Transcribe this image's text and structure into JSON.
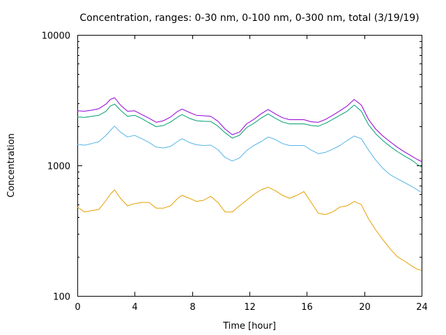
{
  "chart_data": {
    "type": "line",
    "title": "Concentration, ranges: 0-30 nm, 0-100 nm, 0-300 nm, total (3/19/19)",
    "xlabel": "Time [hour]",
    "ylabel": "Concentration",
    "xlim": [
      0,
      24
    ],
    "ylim": [
      100,
      10000
    ],
    "yscale": "log",
    "x_ticks": [
      0,
      4,
      8,
      12,
      16,
      20,
      24
    ],
    "y_ticks": [
      100,
      1000,
      10000
    ],
    "x_tick_labels": [
      "0",
      "4",
      "8",
      "12",
      "16",
      "20",
      "24"
    ],
    "y_tick_labels": [
      "100",
      "1000",
      "10000"
    ],
    "grid": false,
    "legend": "none",
    "series": [
      {
        "color": "#e69f00",
        "points": [
          [
            0,
            480
          ],
          [
            0.5,
            440
          ],
          [
            1,
            450
          ],
          [
            1.5,
            460
          ],
          [
            2,
            540
          ],
          [
            2.3,
            600
          ],
          [
            2.6,
            650
          ],
          [
            3,
            560
          ],
          [
            3.5,
            490
          ],
          [
            4,
            510
          ],
          [
            4.5,
            520
          ],
          [
            5,
            520
          ],
          [
            5.5,
            470
          ],
          [
            6,
            470
          ],
          [
            6.5,
            490
          ],
          [
            7,
            560
          ],
          [
            7.3,
            590
          ],
          [
            7.8,
            560
          ],
          [
            8.3,
            530
          ],
          [
            8.8,
            540
          ],
          [
            9.3,
            580
          ],
          [
            9.8,
            520
          ],
          [
            10.3,
            440
          ],
          [
            10.8,
            440
          ],
          [
            11.3,
            490
          ],
          [
            11.8,
            540
          ],
          [
            12.3,
            600
          ],
          [
            12.8,
            650
          ],
          [
            13.3,
            680
          ],
          [
            13.8,
            640
          ],
          [
            14.3,
            590
          ],
          [
            14.8,
            560
          ],
          [
            15.3,
            590
          ],
          [
            15.8,
            630
          ],
          [
            16.3,
            520
          ],
          [
            16.8,
            430
          ],
          [
            17.3,
            420
          ],
          [
            17.8,
            440
          ],
          [
            18.3,
            480
          ],
          [
            18.8,
            490
          ],
          [
            19.3,
            530
          ],
          [
            19.8,
            500
          ],
          [
            20.3,
            390
          ],
          [
            20.8,
            320
          ],
          [
            21.3,
            270
          ],
          [
            21.8,
            230
          ],
          [
            22.3,
            200
          ],
          [
            22.8,
            185
          ],
          [
            23.3,
            170
          ],
          [
            23.7,
            160
          ],
          [
            24,
            157
          ]
        ]
      },
      {
        "color": "#56b4e9",
        "points": [
          [
            0,
            1450
          ],
          [
            0.5,
            1430
          ],
          [
            1,
            1470
          ],
          [
            1.5,
            1520
          ],
          [
            2,
            1700
          ],
          [
            2.3,
            1850
          ],
          [
            2.6,
            2000
          ],
          [
            3,
            1800
          ],
          [
            3.5,
            1650
          ],
          [
            4,
            1700
          ],
          [
            4.5,
            1600
          ],
          [
            5,
            1500
          ],
          [
            5.5,
            1380
          ],
          [
            6,
            1360
          ],
          [
            6.5,
            1400
          ],
          [
            7,
            1530
          ],
          [
            7.3,
            1600
          ],
          [
            7.8,
            1500
          ],
          [
            8.3,
            1440
          ],
          [
            8.8,
            1420
          ],
          [
            9.3,
            1430
          ],
          [
            9.8,
            1320
          ],
          [
            10.3,
            1150
          ],
          [
            10.8,
            1080
          ],
          [
            11.3,
            1140
          ],
          [
            11.8,
            1300
          ],
          [
            12.3,
            1420
          ],
          [
            12.8,
            1520
          ],
          [
            13.3,
            1650
          ],
          [
            13.8,
            1580
          ],
          [
            14.3,
            1470
          ],
          [
            14.8,
            1420
          ],
          [
            15.3,
            1420
          ],
          [
            15.8,
            1420
          ],
          [
            16.3,
            1310
          ],
          [
            16.8,
            1230
          ],
          [
            17.3,
            1260
          ],
          [
            17.8,
            1330
          ],
          [
            18.3,
            1420
          ],
          [
            18.8,
            1550
          ],
          [
            19.3,
            1680
          ],
          [
            19.8,
            1600
          ],
          [
            20.3,
            1310
          ],
          [
            20.8,
            1100
          ],
          [
            21.3,
            950
          ],
          [
            21.8,
            850
          ],
          [
            22.3,
            790
          ],
          [
            22.8,
            740
          ],
          [
            23.3,
            690
          ],
          [
            23.7,
            650
          ],
          [
            24,
            620
          ]
        ]
      },
      {
        "color": "#009e73",
        "points": [
          [
            0,
            2350
          ],
          [
            0.5,
            2330
          ],
          [
            1,
            2380
          ],
          [
            1.5,
            2420
          ],
          [
            2,
            2600
          ],
          [
            2.3,
            2850
          ],
          [
            2.6,
            2950
          ],
          [
            3,
            2650
          ],
          [
            3.5,
            2380
          ],
          [
            4,
            2420
          ],
          [
            4.5,
            2280
          ],
          [
            5,
            2120
          ],
          [
            5.5,
            1980
          ],
          [
            6,
            2020
          ],
          [
            6.5,
            2150
          ],
          [
            7,
            2350
          ],
          [
            7.3,
            2450
          ],
          [
            7.8,
            2300
          ],
          [
            8.3,
            2200
          ],
          [
            8.8,
            2180
          ],
          [
            9.3,
            2170
          ],
          [
            9.8,
            2000
          ],
          [
            10.3,
            1780
          ],
          [
            10.8,
            1620
          ],
          [
            11.3,
            1700
          ],
          [
            11.8,
            1950
          ],
          [
            12.3,
            2100
          ],
          [
            12.8,
            2300
          ],
          [
            13.3,
            2480
          ],
          [
            13.8,
            2300
          ],
          [
            14.3,
            2150
          ],
          [
            14.8,
            2080
          ],
          [
            15.3,
            2080
          ],
          [
            15.8,
            2080
          ],
          [
            16.3,
            2020
          ],
          [
            16.8,
            2000
          ],
          [
            17.3,
            2100
          ],
          [
            17.8,
            2250
          ],
          [
            18.3,
            2420
          ],
          [
            18.8,
            2600
          ],
          [
            19.3,
            2900
          ],
          [
            19.8,
            2600
          ],
          [
            20.3,
            2050
          ],
          [
            20.8,
            1750
          ],
          [
            21.3,
            1550
          ],
          [
            21.8,
            1400
          ],
          [
            22.3,
            1280
          ],
          [
            22.8,
            1180
          ],
          [
            23.3,
            1100
          ],
          [
            23.7,
            1020
          ],
          [
            24,
            970
          ]
        ]
      },
      {
        "color": "#9400d3",
        "points": [
          [
            0,
            2620
          ],
          [
            0.5,
            2600
          ],
          [
            1,
            2650
          ],
          [
            1.5,
            2720
          ],
          [
            2,
            2950
          ],
          [
            2.3,
            3200
          ],
          [
            2.6,
            3300
          ],
          [
            3,
            2900
          ],
          [
            3.5,
            2600
          ],
          [
            4,
            2620
          ],
          [
            4.5,
            2450
          ],
          [
            5,
            2300
          ],
          [
            5.5,
            2140
          ],
          [
            6,
            2200
          ],
          [
            6.5,
            2350
          ],
          [
            7,
            2600
          ],
          [
            7.3,
            2700
          ],
          [
            7.8,
            2550
          ],
          [
            8.3,
            2420
          ],
          [
            8.8,
            2400
          ],
          [
            9.3,
            2380
          ],
          [
            9.8,
            2180
          ],
          [
            10.3,
            1900
          ],
          [
            10.8,
            1720
          ],
          [
            11.3,
            1800
          ],
          [
            11.8,
            2080
          ],
          [
            12.3,
            2250
          ],
          [
            12.8,
            2480
          ],
          [
            13.3,
            2680
          ],
          [
            13.8,
            2480
          ],
          [
            14.3,
            2320
          ],
          [
            14.8,
            2240
          ],
          [
            15.3,
            2240
          ],
          [
            15.8,
            2240
          ],
          [
            16.3,
            2160
          ],
          [
            16.8,
            2140
          ],
          [
            17.3,
            2250
          ],
          [
            17.8,
            2420
          ],
          [
            18.3,
            2620
          ],
          [
            18.8,
            2850
          ],
          [
            19.3,
            3200
          ],
          [
            19.8,
            2900
          ],
          [
            20.3,
            2250
          ],
          [
            20.8,
            1900
          ],
          [
            21.3,
            1680
          ],
          [
            21.8,
            1520
          ],
          [
            22.3,
            1380
          ],
          [
            22.8,
            1270
          ],
          [
            23.3,
            1180
          ],
          [
            23.7,
            1110
          ],
          [
            24,
            1070
          ]
        ]
      }
    ]
  }
}
